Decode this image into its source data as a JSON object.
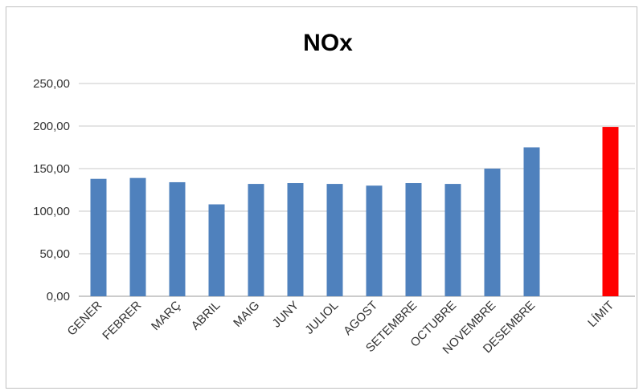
{
  "chart_data": {
    "type": "bar",
    "title": "NOx",
    "xlabel": "",
    "ylabel": "",
    "ylim": [
      0,
      250
    ],
    "yticks": [
      0,
      50,
      100,
      150,
      200,
      250
    ],
    "ytick_labels": [
      "0,00",
      "50,00",
      "100,00",
      "150,00",
      "200,00",
      "250,00"
    ],
    "grid": true,
    "legend": "none",
    "categories": [
      "GENER",
      "FEBRER",
      "MARÇ",
      "ABRIL",
      "MAIG",
      "JUNY",
      "JULIOL",
      "AGOST",
      "SETEMBRE",
      "OCTUBRE",
      "NOVEMBRE",
      "DESEMBRE",
      "",
      "LÍMIT"
    ],
    "values": [
      138,
      139,
      134,
      108,
      132,
      133,
      132,
      130,
      133,
      132,
      150,
      175,
      null,
      199
    ],
    "colors": {
      "bar": "#4f81bd",
      "limit_bar": "#ff0000",
      "grid": "#c8c8c8"
    }
  }
}
